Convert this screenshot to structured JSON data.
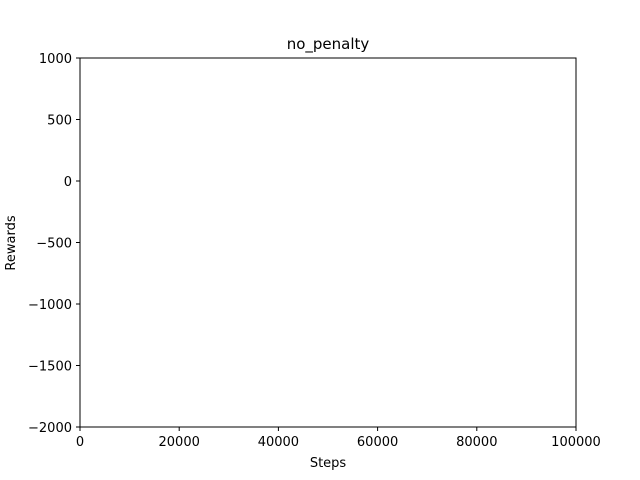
{
  "chart_data": {
    "type": "line",
    "title": "no_penalty",
    "xlabel": "Steps",
    "ylabel": "Rewards",
    "xlim": [
      0,
      100000
    ],
    "ylim": [
      -2000,
      1000
    ],
    "x_ticks": [
      {
        "value": 0,
        "label": "0"
      },
      {
        "value": 20000,
        "label": "20000"
      },
      {
        "value": 40000,
        "label": "40000"
      },
      {
        "value": 60000,
        "label": "60000"
      },
      {
        "value": 80000,
        "label": "80000"
      },
      {
        "value": 100000,
        "label": "100000"
      }
    ],
    "y_ticks": [
      {
        "value": 1000,
        "label": "1000"
      },
      {
        "value": 500,
        "label": "500"
      },
      {
        "value": 0,
        "label": "0"
      },
      {
        "value": -500,
        "label": "−500"
      },
      {
        "value": -1000,
        "label": "−1000"
      },
      {
        "value": -1500,
        "label": "−1500"
      },
      {
        "value": -2000,
        "label": "−2000"
      }
    ],
    "series": [],
    "grid": false,
    "legend": "none",
    "colors": {
      "axis": "#000000",
      "background": "#ffffff"
    }
  }
}
